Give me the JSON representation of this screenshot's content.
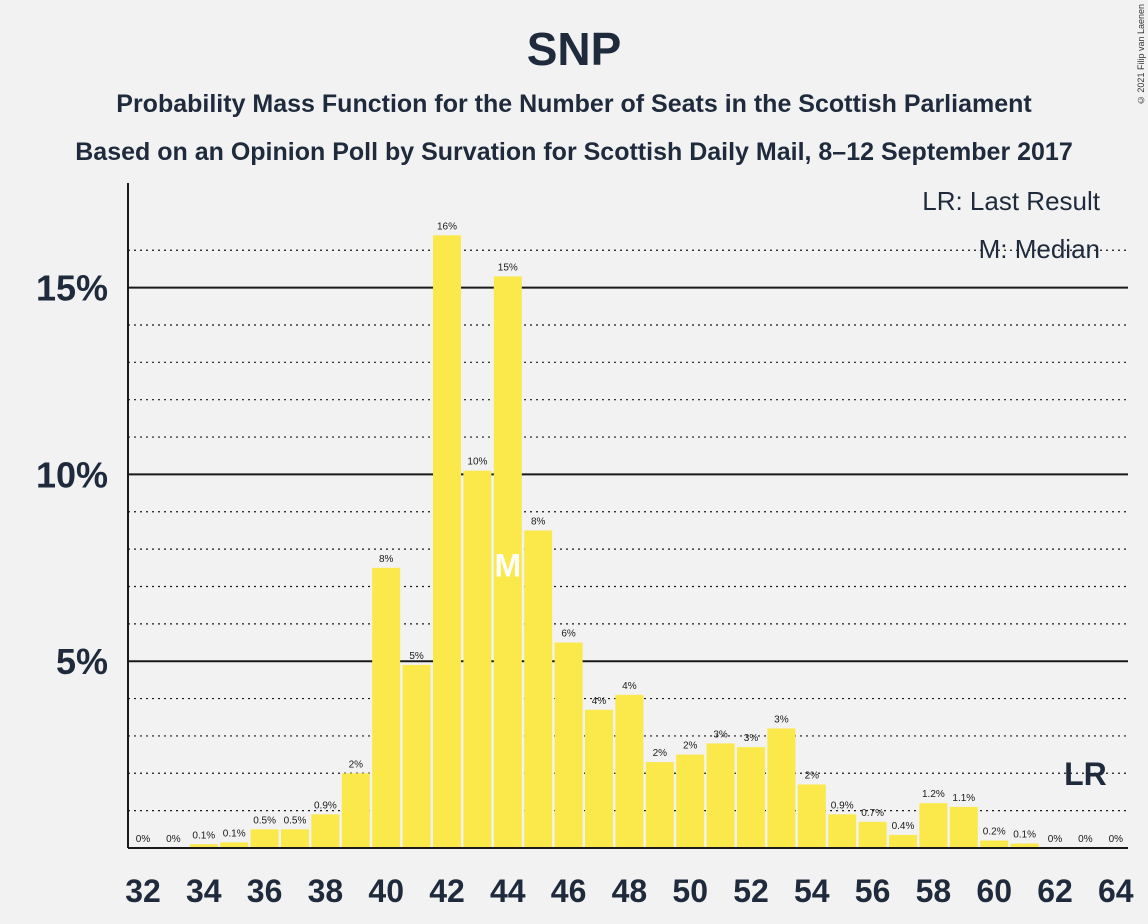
{
  "header": {
    "title": "SNP",
    "subtitle1": "Probability Mass Function for the Number of Seats in the Scottish Parliament",
    "subtitle2": "Based on an Opinion Poll by Survation for Scottish Daily Mail, 8–12 September 2017",
    "copyright": "© 2021 Filip van Laenen"
  },
  "legend": {
    "last_result": "LR: Last Result",
    "median": "M: Median"
  },
  "colors": {
    "bar": "#fbe84a",
    "axis": "#1a1a1a",
    "background": "#f2f2f2"
  },
  "chart_data": {
    "type": "bar",
    "categories": [
      32,
      33,
      34,
      35,
      36,
      37,
      38,
      39,
      40,
      41,
      42,
      43,
      44,
      45,
      46,
      47,
      48,
      49,
      50,
      51,
      52,
      53,
      54,
      55,
      56,
      57,
      58,
      59,
      60,
      61,
      62,
      63,
      64
    ],
    "values": [
      0,
      0,
      0.1,
      0.15,
      0.5,
      0.5,
      0.9,
      2.0,
      7.5,
      4.9,
      16.4,
      10.1,
      15.3,
      8.5,
      5.5,
      3.7,
      4.1,
      2.3,
      2.5,
      2.8,
      2.7,
      3.2,
      1.7,
      0.9,
      0.7,
      0.35,
      1.2,
      1.1,
      0.2,
      0.12,
      0,
      0,
      0
    ],
    "labels": [
      "0%",
      "0%",
      "0.1%",
      "0.1%",
      "0.5%",
      "0.5%",
      "0.9%",
      "2%",
      "8%",
      "5%",
      "16%",
      "10%",
      "15%",
      "8%",
      "6%",
      "4%",
      "4%",
      "2%",
      "2%",
      "3%",
      "3%",
      "3%",
      "2%",
      "0.9%",
      "0.7%",
      "0.4%",
      "1.2%",
      "1.1%",
      "0.2%",
      "0.1%",
      "0%",
      "0%",
      "0%"
    ],
    "x_tick_labels": [
      "32",
      "34",
      "36",
      "38",
      "40",
      "42",
      "44",
      "46",
      "48",
      "50",
      "52",
      "54",
      "56",
      "58",
      "60",
      "62",
      "64"
    ],
    "y_tick_labels": [
      "5%",
      "10%",
      "15%"
    ],
    "y_ticks": [
      5,
      10,
      15
    ],
    "ylim": [
      0,
      17.8
    ],
    "median_seat": 44,
    "median_marker": "M",
    "last_result_seat": 63,
    "last_result_marker": "LR"
  }
}
